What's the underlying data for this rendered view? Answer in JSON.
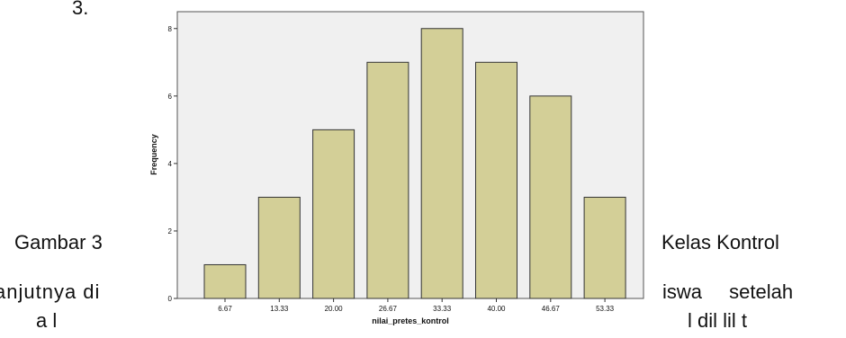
{
  "document": {
    "top_fragment": "3.",
    "caption_left": "Gambar 3",
    "caption_right": "Kelas Kontrol",
    "line2_left": "anjutnya  di",
    "line2_right": "iswa setelah",
    "line3_left": "a        l",
    "line3_right": "l    dil    lil    t"
  },
  "chart_data": {
    "type": "bar",
    "categories": [
      "6.67",
      "13.33",
      "20.00",
      "26.67",
      "33.33",
      "40.00",
      "46.67",
      "53.33"
    ],
    "values": [
      1,
      3,
      5,
      7,
      8,
      7,
      6,
      3
    ],
    "xlabel": "nilai_pretes_kontrol",
    "ylabel": "Frequency",
    "ylim": [
      0,
      8.5
    ],
    "yticks": [
      0,
      2,
      4,
      6,
      8
    ],
    "grid": false,
    "colors": {
      "bar_fill": "#d3cf97",
      "bar_stroke": "#333333",
      "plot_bg": "#f0f0f0",
      "frame": "#555555"
    }
  }
}
